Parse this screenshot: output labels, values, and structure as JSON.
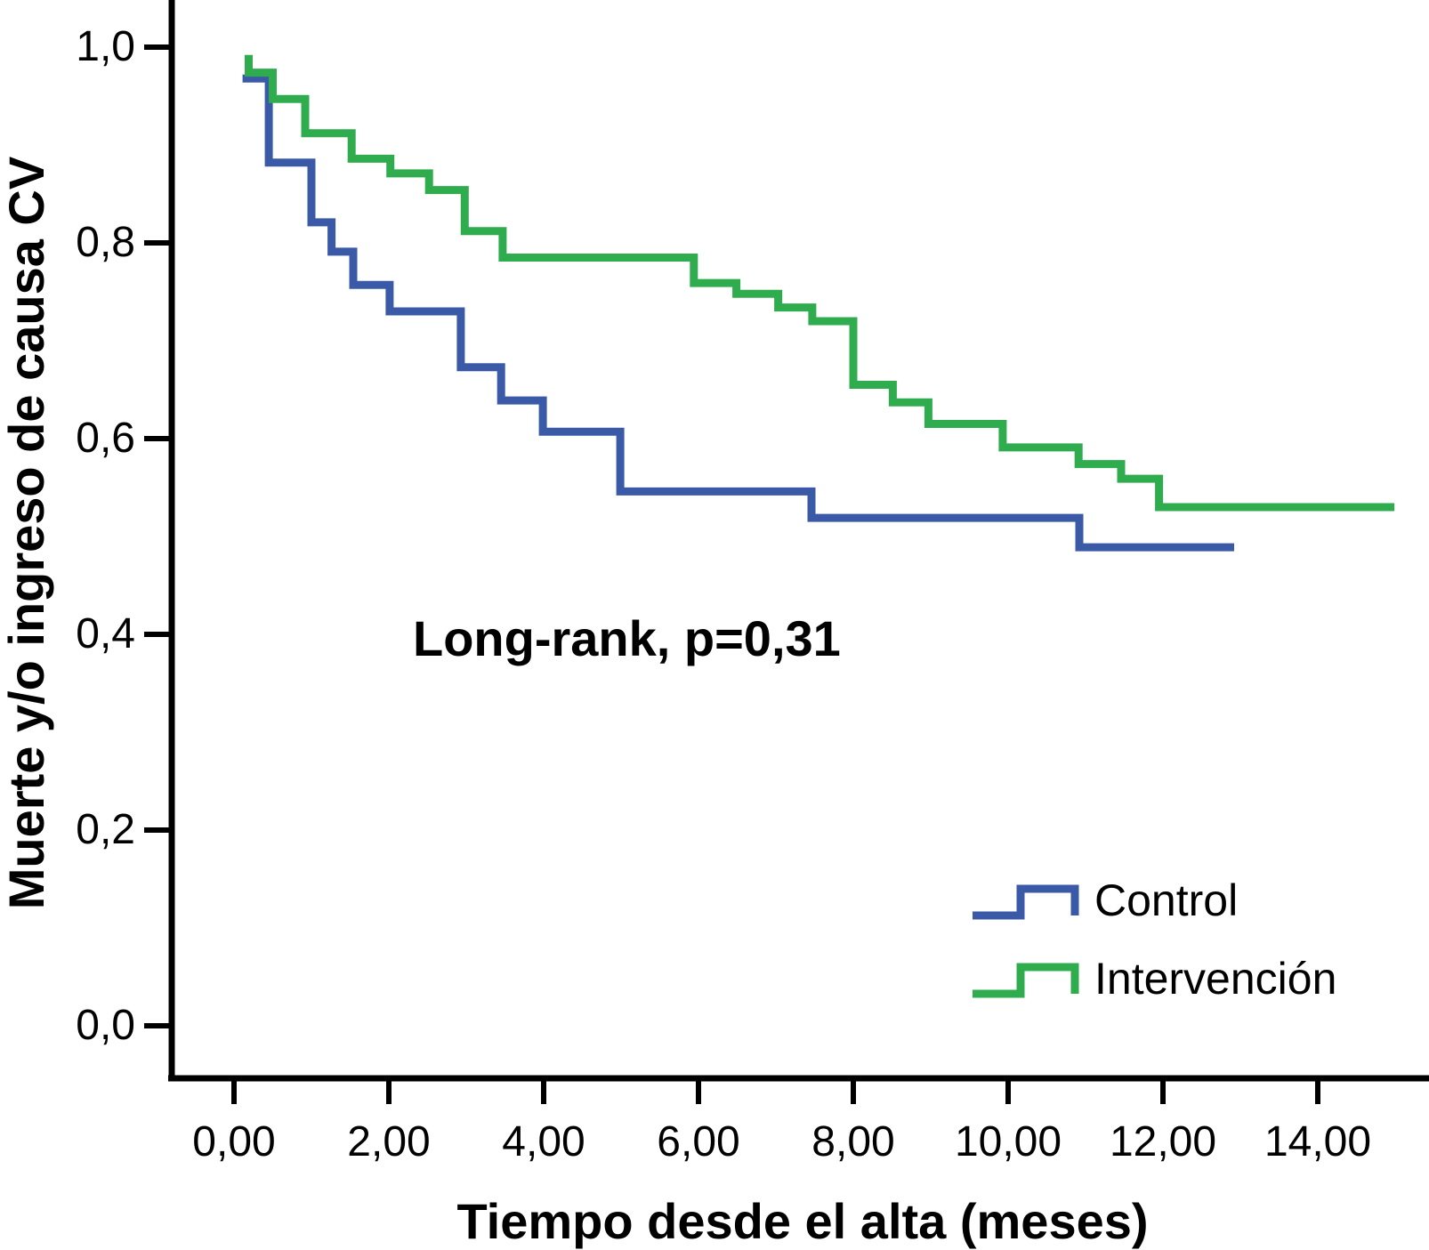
{
  "figure": {
    "background": "#ffffff",
    "axis_color": "#000000",
    "text_color": "#000000"
  },
  "chart_data": {
    "type": "line",
    "variant": "kaplan-meier-step",
    "title": "",
    "xlabel": "Tiempo desde el alta (meses)",
    "ylabel": "Muerte y/o ingreso de causa CV",
    "annotation": "Long-rank, p=0,31",
    "grid": false,
    "xlim": [
      -0.8,
      15.4
    ],
    "ylim": [
      -0.054,
      1.048
    ],
    "x_ticks": {
      "values": [
        0,
        2,
        4,
        6,
        8,
        10,
        12,
        14
      ],
      "labels": [
        "0,00",
        "2,00",
        "4,00",
        "6,00",
        "8,00",
        "10,00",
        "12,00",
        "14,00"
      ]
    },
    "y_ticks": {
      "values": [
        0.0,
        0.2,
        0.4,
        0.6,
        0.8,
        1.0
      ],
      "labels": [
        "0,0",
        "0,2",
        "0,4",
        "0,6",
        "0,8",
        "1,0"
      ]
    },
    "legend": {
      "position": "lower-right",
      "items": [
        {
          "label": "Control",
          "color": "#3A5AA8"
        },
        {
          "label": "Intervención",
          "color": "#2FAD4E"
        }
      ]
    },
    "series": [
      {
        "name": "Control",
        "color": "#3A5AA8",
        "step_vertices": [
          [
            0.11,
            0.968
          ],
          [
            0.45,
            0.968
          ],
          [
            0.45,
            0.882
          ],
          [
            1.0,
            0.882
          ],
          [
            1.0,
            0.821
          ],
          [
            1.26,
            0.821
          ],
          [
            1.26,
            0.791
          ],
          [
            1.54,
            0.791
          ],
          [
            1.54,
            0.757
          ],
          [
            2.01,
            0.757
          ],
          [
            2.01,
            0.73
          ],
          [
            2.93,
            0.73
          ],
          [
            2.93,
            0.673
          ],
          [
            3.45,
            0.673
          ],
          [
            3.45,
            0.639
          ],
          [
            3.99,
            0.639
          ],
          [
            3.99,
            0.607
          ],
          [
            4.99,
            0.607
          ],
          [
            4.99,
            0.546
          ],
          [
            7.46,
            0.546
          ],
          [
            7.46,
            0.519
          ],
          [
            10.92,
            0.519
          ],
          [
            10.92,
            0.489
          ],
          [
            12.92,
            0.489
          ]
        ]
      },
      {
        "name": "Intervención",
        "color": "#2FAD4E",
        "step_vertices": [
          [
            0.19,
            0.992
          ],
          [
            0.19,
            0.974
          ],
          [
            0.5,
            0.974
          ],
          [
            0.5,
            0.947
          ],
          [
            0.92,
            0.947
          ],
          [
            0.92,
            0.912
          ],
          [
            1.52,
            0.912
          ],
          [
            1.52,
            0.886
          ],
          [
            2.02,
            0.886
          ],
          [
            2.02,
            0.871
          ],
          [
            2.52,
            0.871
          ],
          [
            2.52,
            0.854
          ],
          [
            2.98,
            0.854
          ],
          [
            2.98,
            0.812
          ],
          [
            3.47,
            0.812
          ],
          [
            3.47,
            0.785
          ],
          [
            5.94,
            0.785
          ],
          [
            5.94,
            0.759
          ],
          [
            6.49,
            0.759
          ],
          [
            6.49,
            0.748
          ],
          [
            7.03,
            0.748
          ],
          [
            7.03,
            0.734
          ],
          [
            7.47,
            0.734
          ],
          [
            7.47,
            0.72
          ],
          [
            8.0,
            0.72
          ],
          [
            8.0,
            0.655
          ],
          [
            8.51,
            0.655
          ],
          [
            8.51,
            0.637
          ],
          [
            8.97,
            0.637
          ],
          [
            8.97,
            0.615
          ],
          [
            9.93,
            0.615
          ],
          [
            9.93,
            0.591
          ],
          [
            10.91,
            0.591
          ],
          [
            10.91,
            0.574
          ],
          [
            11.46,
            0.574
          ],
          [
            11.46,
            0.559
          ],
          [
            11.95,
            0.559
          ],
          [
            11.95,
            0.53
          ],
          [
            14.99,
            0.53
          ]
        ]
      }
    ]
  }
}
